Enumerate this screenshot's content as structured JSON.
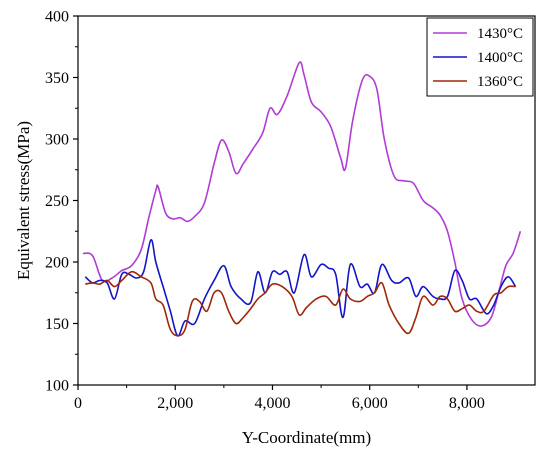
{
  "chart_data": {
    "type": "line",
    "xlabel": "Y-Coordinate(mm)",
    "ylabel": "Equivalent stress(MPa)",
    "xlim": [
      0,
      9400
    ],
    "ylim": [
      100,
      400
    ],
    "xticks": [
      0,
      2000,
      4000,
      6000,
      8000
    ],
    "xtick_labels": [
      "0",
      "2,000",
      "4,000",
      "6,000",
      "8,000"
    ],
    "yticks": [
      100,
      150,
      200,
      250,
      300,
      350,
      400
    ],
    "ytick_labels": [
      "100",
      "150",
      "200",
      "250",
      "300",
      "350",
      "400"
    ],
    "legend_position": "top-right",
    "series": [
      {
        "name": "1430°C",
        "color": "#b03cd6",
        "points": [
          [
            100,
            207
          ],
          [
            300,
            205
          ],
          [
            500,
            185
          ],
          [
            700,
            187
          ],
          [
            900,
            193
          ],
          [
            1100,
            197
          ],
          [
            1300,
            210
          ],
          [
            1450,
            235
          ],
          [
            1600,
            258
          ],
          [
            1650,
            261
          ],
          [
            1800,
            240
          ],
          [
            1950,
            235
          ],
          [
            2100,
            236
          ],
          [
            2250,
            233
          ],
          [
            2400,
            237
          ],
          [
            2600,
            248
          ],
          [
            2800,
            280
          ],
          [
            2950,
            299
          ],
          [
            3100,
            290
          ],
          [
            3250,
            272
          ],
          [
            3400,
            280
          ],
          [
            3600,
            292
          ],
          [
            3800,
            305
          ],
          [
            3950,
            325
          ],
          [
            4100,
            320
          ],
          [
            4300,
            335
          ],
          [
            4550,
            362
          ],
          [
            4650,
            352
          ],
          [
            4800,
            330
          ],
          [
            5000,
            322
          ],
          [
            5200,
            310
          ],
          [
            5400,
            285
          ],
          [
            5500,
            276
          ],
          [
            5650,
            315
          ],
          [
            5850,
            348
          ],
          [
            6000,
            351
          ],
          [
            6150,
            340
          ],
          [
            6300,
            300
          ],
          [
            6500,
            270
          ],
          [
            6700,
            266
          ],
          [
            6900,
            264
          ],
          [
            7100,
            250
          ],
          [
            7300,
            244
          ],
          [
            7450,
            238
          ],
          [
            7600,
            225
          ],
          [
            7750,
            200
          ],
          [
            7900,
            170
          ],
          [
            8100,
            153
          ],
          [
            8300,
            148
          ],
          [
            8500,
            155
          ],
          [
            8650,
            175
          ],
          [
            8800,
            197
          ],
          [
            8950,
            207
          ],
          [
            9100,
            225
          ]
        ]
      },
      {
        "name": "1400°C",
        "color": "#1414c8",
        "points": [
          [
            150,
            188
          ],
          [
            300,
            183
          ],
          [
            450,
            185
          ],
          [
            600,
            183
          ],
          [
            750,
            170
          ],
          [
            900,
            190
          ],
          [
            1050,
            190
          ],
          [
            1200,
            187
          ],
          [
            1350,
            192
          ],
          [
            1500,
            218
          ],
          [
            1600,
            200
          ],
          [
            1750,
            180
          ],
          [
            1900,
            160
          ],
          [
            2050,
            140
          ],
          [
            2200,
            152
          ],
          [
            2400,
            150
          ],
          [
            2600,
            170
          ],
          [
            2800,
            185
          ],
          [
            3000,
            197
          ],
          [
            3150,
            180
          ],
          [
            3350,
            170
          ],
          [
            3550,
            167
          ],
          [
            3700,
            192
          ],
          [
            3850,
            175
          ],
          [
            4000,
            192
          ],
          [
            4150,
            190
          ],
          [
            4300,
            192
          ],
          [
            4450,
            175
          ],
          [
            4650,
            206
          ],
          [
            4800,
            188
          ],
          [
            5000,
            198
          ],
          [
            5150,
            195
          ],
          [
            5300,
            190
          ],
          [
            5450,
            155
          ],
          [
            5600,
            198
          ],
          [
            5800,
            180
          ],
          [
            5950,
            182
          ],
          [
            6100,
            175
          ],
          [
            6250,
            198
          ],
          [
            6450,
            185
          ],
          [
            6600,
            183
          ],
          [
            6800,
            187
          ],
          [
            6950,
            172
          ],
          [
            7100,
            180
          ],
          [
            7300,
            172
          ],
          [
            7450,
            170
          ],
          [
            7600,
            172
          ],
          [
            7750,
            193
          ],
          [
            7900,
            185
          ],
          [
            8050,
            170
          ],
          [
            8200,
            170
          ],
          [
            8400,
            158
          ],
          [
            8550,
            165
          ],
          [
            8700,
            180
          ],
          [
            8850,
            188
          ],
          [
            9000,
            180
          ]
        ]
      },
      {
        "name": "1360°C",
        "color": "#a02808",
        "points": [
          [
            150,
            182
          ],
          [
            300,
            183
          ],
          [
            450,
            182
          ],
          [
            600,
            185
          ],
          [
            750,
            180
          ],
          [
            900,
            185
          ],
          [
            1100,
            192
          ],
          [
            1300,
            188
          ],
          [
            1500,
            183
          ],
          [
            1600,
            170
          ],
          [
            1750,
            165
          ],
          [
            1900,
            145
          ],
          [
            2050,
            140
          ],
          [
            2200,
            145
          ],
          [
            2350,
            168
          ],
          [
            2500,
            168
          ],
          [
            2650,
            160
          ],
          [
            2800,
            175
          ],
          [
            2950,
            175
          ],
          [
            3100,
            160
          ],
          [
            3250,
            150
          ],
          [
            3400,
            155
          ],
          [
            3550,
            162
          ],
          [
            3700,
            170
          ],
          [
            3850,
            175
          ],
          [
            4000,
            182
          ],
          [
            4200,
            180
          ],
          [
            4400,
            172
          ],
          [
            4550,
            157
          ],
          [
            4700,
            163
          ],
          [
            4900,
            170
          ],
          [
            5100,
            172
          ],
          [
            5300,
            165
          ],
          [
            5450,
            178
          ],
          [
            5600,
            170
          ],
          [
            5800,
            168
          ],
          [
            5950,
            172
          ],
          [
            6100,
            175
          ],
          [
            6250,
            183
          ],
          [
            6400,
            165
          ],
          [
            6600,
            150
          ],
          [
            6800,
            142
          ],
          [
            6950,
            155
          ],
          [
            7100,
            172
          ],
          [
            7300,
            165
          ],
          [
            7450,
            172
          ],
          [
            7600,
            170
          ],
          [
            7750,
            160
          ],
          [
            7900,
            162
          ],
          [
            8050,
            165
          ],
          [
            8200,
            160
          ],
          [
            8350,
            160
          ],
          [
            8550,
            173
          ],
          [
            8700,
            175
          ],
          [
            8850,
            180
          ],
          [
            9000,
            180
          ]
        ]
      }
    ]
  }
}
